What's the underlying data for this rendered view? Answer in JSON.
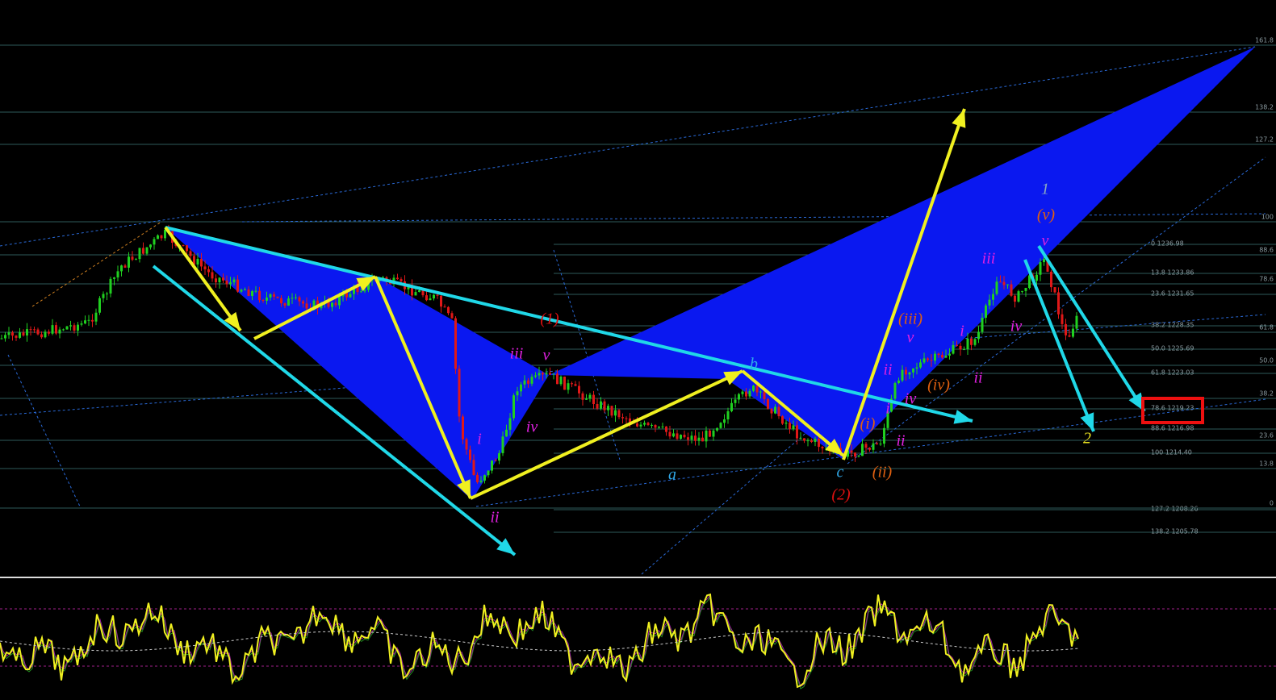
{
  "fib_levels": [
    "0 1236.98",
    "13.8 1233.86",
    "23.6 1231.65",
    "38.2 1228.35",
    "50.0 1225.69",
    "61.8 1223.03",
    "78.6 1219.23",
    "88.6 1216.98",
    "100 1214.40",
    "127.2 1208.26",
    "138.2 1205.78"
  ],
  "edge_levels": [
    "161.8",
    "138.2",
    "127.2",
    "100",
    "88.6",
    "78.6",
    "61.8",
    "50.0",
    "38.2",
    "23.6",
    "13.8",
    "0"
  ],
  "wave_labels": [
    {
      "text": "iii",
      "color": "#e020e0"
    },
    {
      "text": "v",
      "color": "#e020e0"
    },
    {
      "text": "i",
      "color": "#e020e0"
    },
    {
      "text": "iv",
      "color": "#e020e0"
    },
    {
      "text": "ii",
      "color": "#e020e0"
    },
    {
      "text": "(1)",
      "color": "#e01010"
    },
    {
      "text": "a",
      "color": "#30a8e8"
    },
    {
      "text": "b",
      "color": "#30a8e8"
    },
    {
      "text": "c",
      "color": "#30a8e8"
    },
    {
      "text": "(2)",
      "color": "#e01010"
    },
    {
      "text": "(i)",
      "color": "#e06010"
    },
    {
      "text": "(ii)",
      "color": "#e06010"
    },
    {
      "text": "(iii)",
      "color": "#e06010"
    },
    {
      "text": "(iv)",
      "color": "#e06010"
    },
    {
      "text": "(v)",
      "color": "#e06010"
    },
    {
      "text": "i",
      "color": "#e020e0"
    },
    {
      "text": "ii",
      "color": "#e020e0"
    },
    {
      "text": "ii",
      "color": "#e020e0"
    },
    {
      "text": "v",
      "color": "#e020e0"
    },
    {
      "text": "iv",
      "color": "#e020e0"
    },
    {
      "text": "i",
      "color": "#e020e0"
    },
    {
      "text": "ii",
      "color": "#e020e0"
    },
    {
      "text": "iii",
      "color": "#e020e0"
    },
    {
      "text": "iv",
      "color": "#e020e0"
    },
    {
      "text": "v",
      "color": "#e020e0"
    },
    {
      "text": "1",
      "color": "#8aa8c0"
    },
    {
      "text": "2",
      "color": "#e8e020"
    }
  ]
}
